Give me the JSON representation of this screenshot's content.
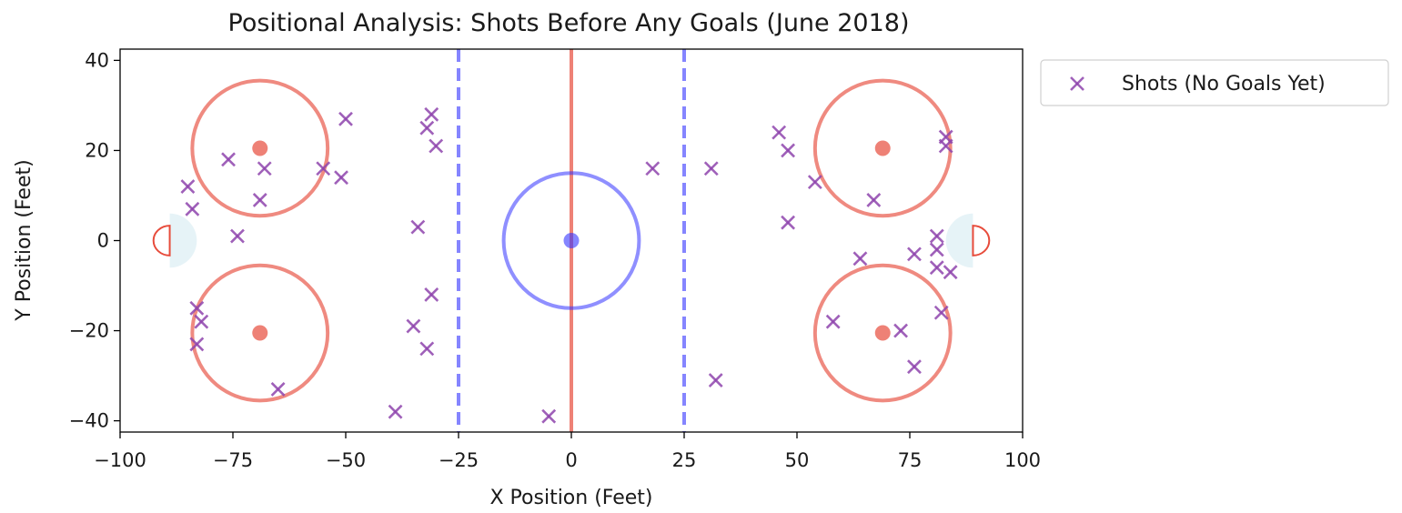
{
  "chart_data": {
    "type": "scatter",
    "title": "Positional Analysis: Shots Before Any Goals (June 2018)",
    "xlabel": "X Position (Feet)",
    "ylabel": "Y Position (Feet)",
    "xlim": [
      -100,
      100
    ],
    "ylim": [
      -42.5,
      42.5
    ],
    "xticks": [
      -100,
      -75,
      -50,
      -25,
      0,
      25,
      50,
      75,
      100
    ],
    "yticks": [
      -40,
      -20,
      0,
      20,
      40
    ],
    "xtick_labels": [
      "−100",
      "−75",
      "−50",
      "−25",
      "0",
      "25",
      "50",
      "75",
      "100"
    ],
    "ytick_labels": [
      "−40",
      "−20",
      "0",
      "20",
      "40"
    ],
    "grid": false,
    "legend_position": "outside-top-right",
    "series": [
      {
        "name": "Shots (No Goals Yet)",
        "marker": "x",
        "color": "#8e44ad",
        "points": [
          [
            -85,
            12
          ],
          [
            -84,
            7
          ],
          [
            -76,
            18
          ],
          [
            -69,
            9
          ],
          [
            -68,
            16
          ],
          [
            -74,
            1
          ],
          [
            -55,
            16
          ],
          [
            -51,
            14
          ],
          [
            -50,
            27
          ],
          [
            -32,
            25
          ],
          [
            -31,
            28
          ],
          [
            -30,
            21
          ],
          [
            -34,
            3
          ],
          [
            -31,
            -12
          ],
          [
            -35,
            -19
          ],
          [
            -32,
            -24
          ],
          [
            -39,
            -38
          ],
          [
            -5,
            -39
          ],
          [
            -83,
            -15
          ],
          [
            -82,
            -18
          ],
          [
            -83,
            -23
          ],
          [
            -65,
            -33
          ],
          [
            18,
            16
          ],
          [
            31,
            16
          ],
          [
            32,
            -31
          ],
          [
            46,
            24
          ],
          [
            48,
            20
          ],
          [
            54,
            13
          ],
          [
            48,
            4
          ],
          [
            67,
            9
          ],
          [
            83,
            23
          ],
          [
            83,
            21
          ],
          [
            64,
            -4
          ],
          [
            76,
            -3
          ],
          [
            81,
            1
          ],
          [
            81,
            -2
          ],
          [
            81,
            -6
          ],
          [
            84,
            -7
          ],
          [
            58,
            -18
          ],
          [
            73,
            -20
          ],
          [
            76,
            -28
          ],
          [
            82,
            -16
          ]
        ]
      }
    ],
    "rink": {
      "center_line_x": 0,
      "blue_lines_x": [
        -25,
        25
      ],
      "center_circle": {
        "x": 0,
        "y": 0,
        "r": 15
      },
      "faceoff_circles": [
        {
          "x": -69,
          "y": 20.5,
          "r": 15
        },
        {
          "x": -69,
          "y": -20.5,
          "r": 15
        },
        {
          "x": 69,
          "y": 20.5,
          "r": 15
        },
        {
          "x": 69,
          "y": -20.5,
          "r": 15
        }
      ],
      "goal_lines_x": [
        -89,
        89
      ],
      "crease_radius": 6,
      "red_color": "#e74c3c",
      "blue_color": "#3333ff",
      "crease_color": "#add8e6"
    }
  }
}
